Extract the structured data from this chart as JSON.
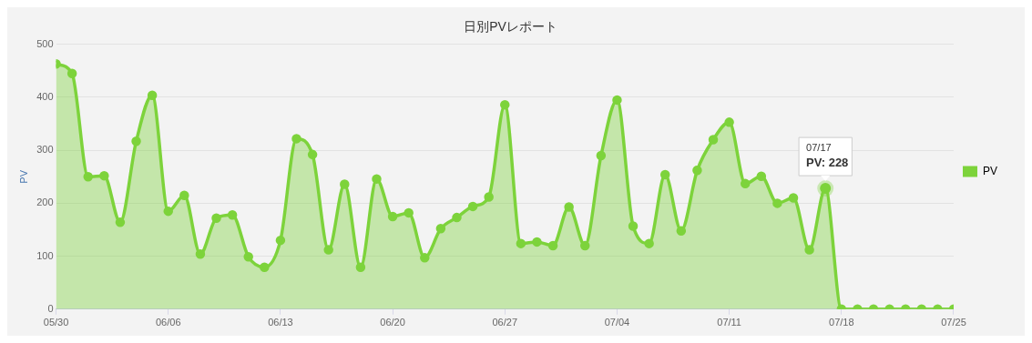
{
  "chart_data": {
    "type": "area",
    "title": "日別PVレポート",
    "ylabel": "PV",
    "x": [
      "--05-30",
      "--05-31",
      "--06-01",
      "--06-02",
      "--06-03",
      "--06-04",
      "--06-05",
      "--06-06",
      "--06-07",
      "--06-08",
      "--06-09",
      "--06-10",
      "--06-11",
      "--06-12",
      "--06-13",
      "--06-14",
      "--06-15",
      "--06-16",
      "--06-17",
      "--06-18",
      "--06-19",
      "--06-20",
      "--06-21",
      "--06-22",
      "--06-23",
      "--06-24",
      "--06-25",
      "--06-26",
      "--06-27",
      "--06-28",
      "--06-29",
      "--06-30",
      "--07-01",
      "--07-02",
      "--07-03",
      "--07-04",
      "--07-05",
      "--07-06",
      "--07-07",
      "--07-08",
      "--07-09",
      "--07-10",
      "--07-11",
      "--07-12",
      "--07-13",
      "--07-14",
      "--07-15",
      "--07-16",
      "--07-17",
      "--07-18",
      "--07-19",
      "--07-20",
      "--07-21",
      "--07-22",
      "--07-23",
      "--07-24",
      "--07-25"
    ],
    "series": [
      {
        "name": "PV",
        "color": "#7dd33b",
        "values": [
          463,
          445,
          250,
          252,
          164,
          317,
          404,
          185,
          215,
          104,
          172,
          178,
          99,
          79,
          130,
          322,
          292,
          112,
          236,
          79,
          246,
          175,
          182,
          97,
          152,
          173,
          194,
          212,
          386,
          124,
          127,
          120,
          193,
          120,
          290,
          395,
          157,
          124,
          254,
          148,
          262,
          320,
          353,
          237,
          251,
          200,
          210,
          112,
          228,
          0,
          0,
          0,
          0,
          0,
          0,
          0,
          0
        ]
      }
    ],
    "xlim": [
      "--05-30",
      "--07-25"
    ],
    "xticks": [
      {
        "value": "--05-30",
        "label": "05/30"
      },
      {
        "value": "--06-06",
        "label": "06/06"
      },
      {
        "value": "--06-13",
        "label": "06/13"
      },
      {
        "value": "--06-20",
        "label": "06/20"
      },
      {
        "value": "--06-27",
        "label": "06/27"
      },
      {
        "value": "--07-04",
        "label": "07/04"
      },
      {
        "value": "--07-11",
        "label": "07/11"
      },
      {
        "value": "--07-18",
        "label": "07/18"
      },
      {
        "value": "--07-25",
        "label": "07/25"
      }
    ],
    "ylim": [
      0,
      500
    ],
    "yticks": [
      0,
      100,
      200,
      300,
      400,
      500
    ],
    "annotations": [
      {
        "text": "07/17\nPV: 228",
        "x": "--07-17",
        "y": 228
      }
    ],
    "grid": "y",
    "legend": "right",
    "marker": "circle",
    "line_style": "solid"
  }
}
